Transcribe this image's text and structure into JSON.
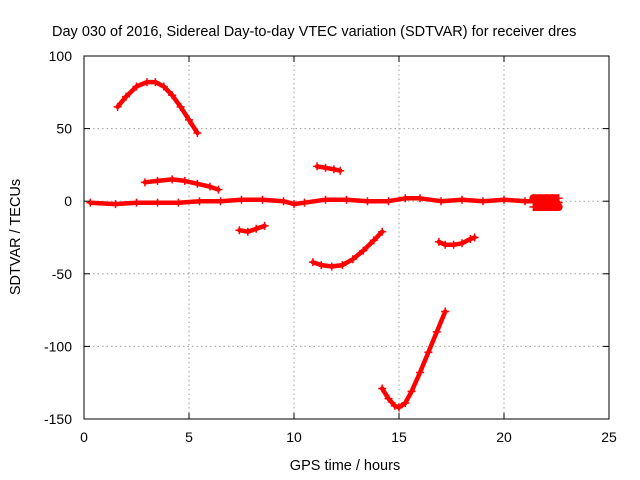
{
  "chart_data": {
    "type": "scatter",
    "title": "Day 030 of 2016, Sidereal Day-to-day VTEC variation (SDTVAR) for receiver dres",
    "xlabel": "GPS time / hours",
    "ylabel": "SDTVAR / TECUs",
    "xlim": [
      0,
      25
    ],
    "ylim": [
      -150,
      100
    ],
    "xticks": [
      0,
      5,
      10,
      15,
      20,
      25
    ],
    "xtick_labels": [
      "0",
      "5",
      "10",
      "15",
      "20",
      "25"
    ],
    "yticks": [
      -150,
      -100,
      -50,
      0,
      50,
      100
    ],
    "ytick_labels": [
      "-150",
      "-100",
      "-50",
      "0",
      "50",
      "100"
    ],
    "grid": true,
    "marker_color": "#ff0000",
    "series": [
      {
        "name": "arc-1",
        "x": [
          1.6,
          2.0,
          2.5,
          3.0,
          3.4,
          3.8,
          4.2,
          4.6,
          5.0,
          5.4
        ],
        "y": [
          65,
          72,
          79,
          82,
          82,
          79,
          73,
          65,
          56,
          47
        ]
      },
      {
        "name": "arc-2",
        "x": [
          2.9,
          3.5,
          4.2,
          4.8,
          5.4,
          6.0,
          6.4
        ],
        "y": [
          13,
          14,
          15,
          14,
          12,
          10,
          8
        ]
      },
      {
        "name": "arc-baseline",
        "x": [
          0.3,
          1.5,
          2.5,
          3.5,
          4.5,
          5.5,
          6.5,
          7.5,
          8.5,
          9.5,
          10.0,
          10.5,
          11.5,
          12.5,
          13.5,
          14.5,
          15.3,
          16.0,
          17.0,
          18.0,
          19.0,
          20.0,
          21.0,
          21.8,
          22.6
        ],
        "y": [
          -1,
          -2,
          -1,
          -1,
          -1,
          0,
          0,
          1,
          1,
          0,
          -2,
          -1,
          1,
          1,
          0,
          0,
          2,
          2,
          0,
          1,
          0,
          1,
          0,
          0,
          -1
        ]
      },
      {
        "name": "arc-block",
        "x": [
          21.4,
          21.7,
          22.0,
          22.3,
          22.6,
          21.4,
          21.7,
          22.0,
          22.3,
          22.6
        ],
        "y": [
          -4,
          -4,
          -4,
          -4,
          -4,
          2,
          2,
          2,
          2,
          2
        ]
      },
      {
        "name": "arc-3",
        "x": [
          7.4,
          7.8,
          8.2,
          8.6
        ],
        "y": [
          -20,
          -21,
          -19,
          -17
        ]
      },
      {
        "name": "arc-4",
        "x": [
          11.1,
          11.5,
          11.9,
          12.2
        ],
        "y": [
          24,
          23,
          22,
          21
        ]
      },
      {
        "name": "arc-5",
        "x": [
          10.9,
          11.3,
          11.8,
          12.3,
          12.8,
          13.3,
          13.8,
          14.2
        ],
        "y": [
          -42,
          -44,
          -45,
          -44,
          -40,
          -34,
          -27,
          -21
        ]
      },
      {
        "name": "arc-6",
        "x": [
          14.2,
          14.5,
          14.8,
          15.0,
          15.3,
          15.6,
          16.0,
          16.4,
          16.8,
          17.2
        ],
        "y": [
          -129,
          -136,
          -141,
          -142,
          -139,
          -131,
          -118,
          -104,
          -90,
          -76
        ]
      },
      {
        "name": "arc-7",
        "x": [
          16.9,
          17.2,
          17.6,
          18.0,
          18.4,
          18.6
        ],
        "y": [
          -28,
          -30,
          -30,
          -29,
          -26,
          -25
        ]
      }
    ]
  }
}
